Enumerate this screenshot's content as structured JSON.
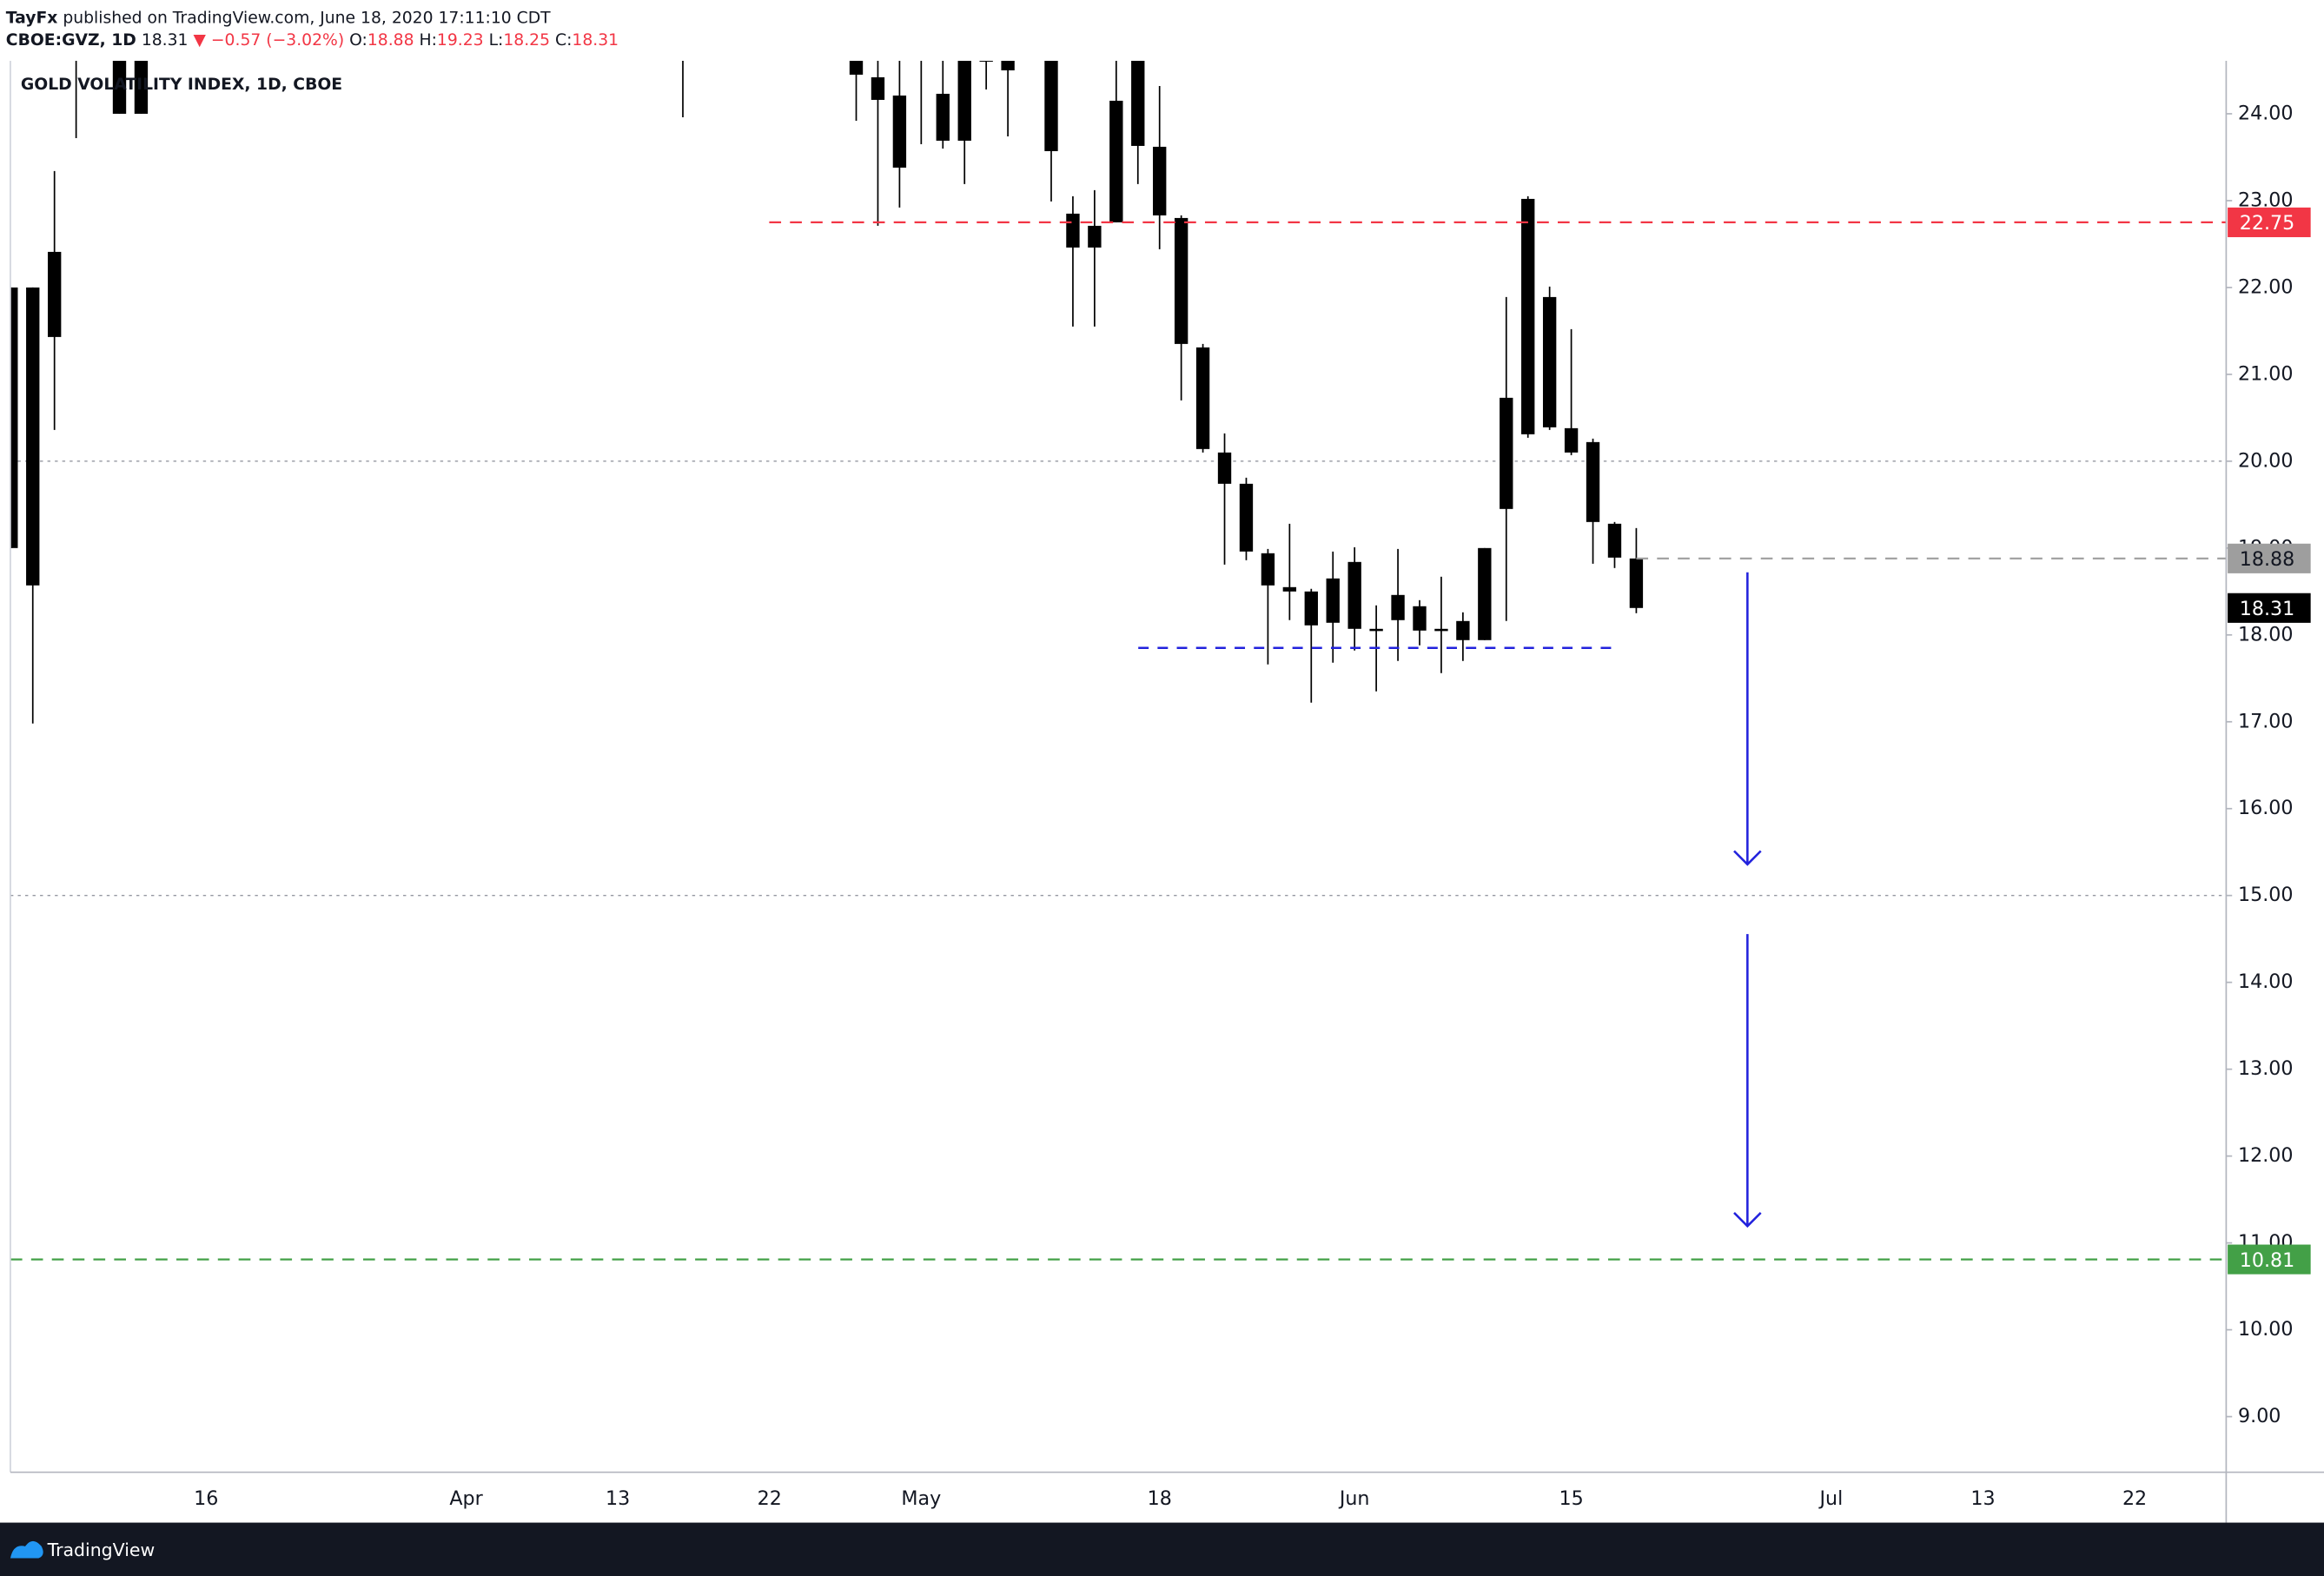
{
  "header": {
    "line1_author": "TayFx",
    "line1_rest": "published on TradingView.com, June 18, 2020 17:11:10 CDT",
    "symbol": "CBOE:GVZ, 1D",
    "last": "18.31",
    "change": "▼ −0.57 (−3.02%)",
    "o_label": "O:",
    "o": "18.88",
    "h_label": "H:",
    "h": "19.23",
    "l_label": "L:",
    "l": "18.25",
    "c_label": "C:",
    "c": "18.31"
  },
  "footer": "TradingView",
  "chart_data": {
    "type": "candlestick",
    "title": "GOLD VOLATILITY INDEX, 1D, CBOE",
    "color": "#000000",
    "categories": [
      null,
      null,
      null,
      null,
      null,
      null,
      null,
      null,
      null,
      "16",
      null,
      null,
      null,
      null,
      null,
      null,
      null,
      null,
      null,
      null,
      null,
      "Apr",
      null,
      null,
      null,
      null,
      null,
      null,
      "13",
      null,
      null,
      null,
      null,
      null,
      null,
      "22",
      null,
      null,
      null,
      null,
      null,
      null,
      "May",
      null,
      null,
      null,
      null,
      null,
      null,
      null,
      null,
      null,
      null,
      "18",
      null,
      null,
      null,
      null,
      null,
      null,
      null,
      null,
      "Jun",
      null,
      null,
      null,
      null,
      null,
      null,
      null,
      null,
      null,
      "15",
      null,
      null,
      null,
      null,
      null,
      null,
      null,
      null,
      null,
      null,
      null,
      "Jul",
      null,
      null,
      null,
      null,
      null,
      null,
      "13",
      null,
      null,
      null,
      null,
      null,
      null,
      "22",
      null,
      null,
      null,
      null
    ],
    "open": [
      22.0,
      22.0,
      21.43,
      25.0,
      null,
      25.0,
      24.8,
      null,
      null,
      null,
      null,
      null,
      null,
      null,
      null,
      null,
      null,
      null,
      null,
      null,
      null,
      null,
      null,
      null,
      null,
      null,
      null,
      null,
      null,
      null,
      null,
      25.0,
      null,
      null,
      null,
      null,
      null,
      null,
      null,
      25.0,
      24.42,
      24.21,
      25.0,
      24.23,
      24.9,
      24.9,
      24.9,
      null,
      24.9,
      22.85,
      22.46,
      22.75,
      24.9,
      23.62,
      22.8,
      21.31,
      20.1,
      19.74,
      18.94,
      18.55,
      18.5,
      18.14,
      18.84,
      18.07,
      18.17,
      18.33,
      18.07,
      17.94,
      17.94,
      19.45,
      20.31,
      21.89,
      20.38,
      20.22,
      19.28,
      18.88,
      null,
      null,
      null,
      null,
      null,
      null,
      null,
      null,
      null,
      null,
      null,
      null,
      null,
      null,
      null,
      null,
      null,
      null,
      null,
      null,
      null,
      null,
      null,
      null,
      null,
      null,
      null
    ],
    "high": [
      22.0,
      22.0,
      23.34,
      26.0,
      null,
      25.5,
      25.2,
      null,
      null,
      null,
      null,
      null,
      null,
      null,
      null,
      null,
      null,
      null,
      null,
      null,
      null,
      null,
      null,
      null,
      null,
      null,
      null,
      null,
      null,
      null,
      null,
      25.5,
      null,
      null,
      null,
      null,
      null,
      null,
      null,
      25.3,
      24.9,
      24.7,
      25.2,
      24.65,
      25.2,
      25.1,
      25.2,
      null,
      25.2,
      23.05,
      23.12,
      24.7,
      25.2,
      24.32,
      22.83,
      21.35,
      20.32,
      19.81,
      18.99,
      19.28,
      18.53,
      18.96,
      19.01,
      18.34,
      18.99,
      18.4,
      18.67,
      18.26,
      19.0,
      21.89,
      23.05,
      22.01,
      21.52,
      20.26,
      19.3,
      19.23,
      null,
      null,
      null,
      null,
      null,
      null,
      null,
      null,
      null,
      null,
      null,
      null,
      null,
      null,
      null,
      null,
      null,
      null,
      null,
      null,
      null,
      null,
      null,
      null,
      null,
      null,
      null
    ],
    "low": [
      19.0,
      16.98,
      20.36,
      23.72,
      null,
      24.0,
      24.0,
      null,
      null,
      null,
      null,
      null,
      null,
      null,
      null,
      null,
      null,
      null,
      null,
      null,
      null,
      null,
      null,
      null,
      null,
      null,
      null,
      null,
      null,
      null,
      null,
      23.96,
      null,
      null,
      null,
      null,
      null,
      null,
      null,
      23.92,
      22.71,
      22.92,
      23.65,
      23.6,
      23.19,
      24.28,
      23.74,
      null,
      22.99,
      21.55,
      21.55,
      22.75,
      23.19,
      22.44,
      20.7,
      20.1,
      18.81,
      18.86,
      17.66,
      18.17,
      17.22,
      17.68,
      17.82,
      17.35,
      17.7,
      17.88,
      17.56,
      17.7,
      17.94,
      18.16,
      20.27,
      20.36,
      20.07,
      18.82,
      18.77,
      18.25,
      null,
      null,
      null,
      null,
      null,
      null,
      null,
      null,
      null,
      null,
      null,
      null,
      null,
      null,
      null,
      null,
      null,
      null,
      null,
      null,
      null,
      null,
      null,
      null,
      null,
      null,
      null
    ],
    "close": [
      19.0,
      18.57,
      22.41,
      25.5,
      null,
      24.0,
      24.0,
      null,
      null,
      null,
      null,
      null,
      null,
      null,
      null,
      null,
      null,
      null,
      null,
      null,
      null,
      null,
      null,
      null,
      null,
      null,
      null,
      null,
      null,
      null,
      null,
      24.8,
      null,
      null,
      null,
      null,
      null,
      null,
      null,
      24.45,
      24.16,
      23.38,
      24.7,
      23.69,
      23.69,
      24.6,
      24.5,
      null,
      23.57,
      22.46,
      22.71,
      24.15,
      23.63,
      22.83,
      21.35,
      20.14,
      19.74,
      18.96,
      18.57,
      18.5,
      18.11,
      18.65,
      18.07,
      18.05,
      18.46,
      18.05,
      18.05,
      18.16,
      19.0,
      20.73,
      23.02,
      20.39,
      20.1,
      19.3,
      18.89,
      18.31,
      null,
      null,
      null,
      null,
      null,
      null,
      null,
      null,
      null,
      null,
      null,
      null,
      null,
      null,
      null,
      null,
      null,
      null,
      null,
      null,
      null,
      null,
      null,
      null,
      null,
      null,
      null
    ],
    "ylim": [
      8.36,
      24.61
    ],
    "yticks": [
      {
        "value": 9,
        "label": "9.00"
      },
      {
        "value": 10,
        "label": "10.00"
      },
      {
        "value": 11,
        "label": "11.00"
      },
      {
        "value": 12,
        "label": "12.00"
      },
      {
        "value": 13,
        "label": "13.00"
      },
      {
        "value": 14,
        "label": "14.00"
      },
      {
        "value": 15,
        "label": "15.00"
      },
      {
        "value": 16,
        "label": "16.00"
      },
      {
        "value": 17,
        "label": "17.00"
      },
      {
        "value": 18,
        "label": "18.00"
      },
      {
        "value": 19,
        "label": "19.00"
      },
      {
        "value": 20,
        "label": "20.00"
      },
      {
        "value": 21,
        "label": "21.00"
      },
      {
        "value": 22,
        "label": "22.00"
      },
      {
        "value": 23,
        "label": "23.00"
      },
      {
        "value": 24,
        "label": "24.00"
      }
    ],
    "hlines": [
      20,
      15
    ],
    "price_lines": [
      {
        "value": 22.75,
        "color": "#f23645",
        "text_color": "#ffffff",
        "style": "dashed"
      },
      {
        "value": 10.81,
        "color": "#43a047",
        "text_color": "#ffffff",
        "style": "dashed"
      },
      {
        "value": 18.88,
        "color": "#9e9e9e",
        "text_color": "#131722",
        "style": "dashed"
      },
      {
        "value": 18.31,
        "color": "#000000",
        "text_color": "#ffffff",
        "style": "none"
      }
    ]
  }
}
